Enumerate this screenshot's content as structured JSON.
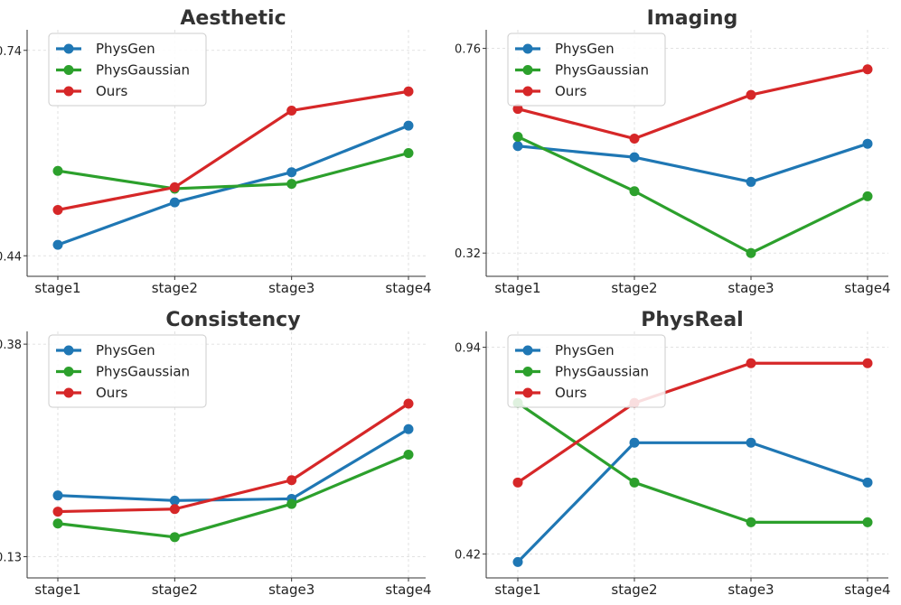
{
  "chart_data": [
    {
      "type": "line",
      "title": "Aesthetic",
      "categories": [
        "stage1",
        "stage2",
        "stage3",
        "stage4"
      ],
      "ylim": [
        0.41,
        0.77
      ],
      "yticks": [
        0.44,
        0.74
      ],
      "ytick_labels": [
        "0.44",
        "0.74"
      ],
      "legend_position": "top-left",
      "series": [
        {
          "name": "PhysGen",
          "color": "#1f77b4",
          "values": [
            0.456,
            0.518,
            0.562,
            0.63
          ]
        },
        {
          "name": "PhysGaussian",
          "color": "#2ca02c",
          "values": [
            0.564,
            0.538,
            0.545,
            0.59
          ]
        },
        {
          "name": "Ours",
          "color": "#d62728",
          "values": [
            0.507,
            0.54,
            0.652,
            0.68
          ]
        }
      ]
    },
    {
      "type": "line",
      "title": "Imaging",
      "categories": [
        "stage1",
        "stage2",
        "stage3",
        "stage4"
      ],
      "ylim": [
        0.27,
        0.8
      ],
      "yticks": [
        0.32,
        0.76
      ],
      "ytick_labels": [
        "0.32",
        "0.76"
      ],
      "legend_position": "top-left",
      "series": [
        {
          "name": "PhysGen",
          "color": "#1f77b4",
          "values": [
            0.55,
            0.526,
            0.473,
            0.555
          ]
        },
        {
          "name": "PhysGaussian",
          "color": "#2ca02c",
          "values": [
            0.57,
            0.453,
            0.32,
            0.442
          ]
        },
        {
          "name": "Ours",
          "color": "#d62728",
          "values": [
            0.63,
            0.566,
            0.66,
            0.715
          ]
        }
      ]
    },
    {
      "type": "line",
      "title": "Consistency",
      "categories": [
        "stage1",
        "stage2",
        "stage3",
        "stage4"
      ],
      "ylim": [
        0.105,
        0.395
      ],
      "yticks": [
        0.13,
        0.38
      ],
      "ytick_labels": [
        "0.13",
        "0.38"
      ],
      "legend_position": "top-left",
      "series": [
        {
          "name": "PhysGen",
          "color": "#1f77b4",
          "values": [
            0.202,
            0.196,
            0.198,
            0.28
          ]
        },
        {
          "name": "PhysGaussian",
          "color": "#2ca02c",
          "values": [
            0.169,
            0.153,
            0.192,
            0.25
          ]
        },
        {
          "name": "Ours",
          "color": "#d62728",
          "values": [
            0.183,
            0.186,
            0.22,
            0.31
          ]
        }
      ]
    },
    {
      "type": "line",
      "title": "PhysReal",
      "categories": [
        "stage1",
        "stage2",
        "stage3",
        "stage4"
      ],
      "ylim": [
        0.36,
        0.98
      ],
      "yticks": [
        0.42,
        0.94
      ],
      "ytick_labels": [
        "0.42",
        "0.94"
      ],
      "legend_position": "top-left",
      "series": [
        {
          "name": "PhysGen",
          "color": "#1f77b4",
          "values": [
            0.4,
            0.7,
            0.7,
            0.6
          ]
        },
        {
          "name": "PhysGaussian",
          "color": "#2ca02c",
          "values": [
            0.8,
            0.6,
            0.5,
            0.5
          ]
        },
        {
          "name": "Ours",
          "color": "#d62728",
          "values": [
            0.6,
            0.8,
            0.9,
            0.9
          ]
        }
      ]
    }
  ]
}
